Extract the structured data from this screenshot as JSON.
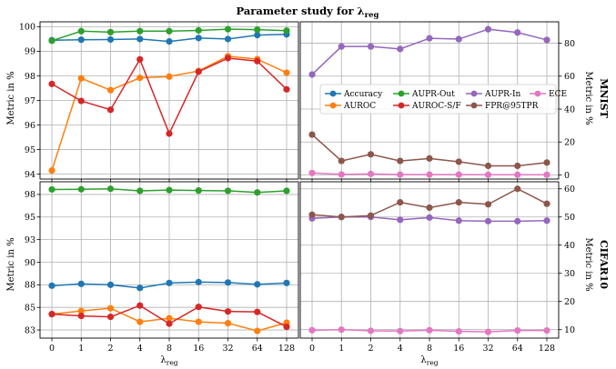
{
  "figure_title": "Parameter study for λreg",
  "title_main": "Parameter study for λ",
  "title_sub": "reg",
  "x_label_main": "λ",
  "x_label_sub": "reg",
  "y_label": "Metric in %",
  "row_labels": [
    "MNIST",
    "CIFAR10"
  ],
  "colors": {
    "Accuracy": "#1f77b4",
    "AUPR-Out": "#2ca02c",
    "AUROC": "#ff7f0e",
    "AUROC-S/F": "#d62728",
    "AUPR-In": "#9467bd",
    "FPR@95TPR": "#8c564b",
    "ECE": "#e377c2"
  },
  "legend": {
    "placement": "center-right",
    "entries": [
      "Accuracy",
      "AUPR-Out",
      "AUPR-In",
      "ECE",
      "AUROC",
      "AUROC-S/F",
      "FPR@95TPR"
    ]
  },
  "chart_data": [
    {
      "type": "line",
      "row": "MNIST",
      "panel": "left",
      "categories": [
        "0",
        "1",
        "2",
        "4",
        "8",
        "16",
        "32",
        "64",
        "128"
      ],
      "ylim": [
        93.8,
        100.2
      ],
      "yticks": [
        94,
        95,
        96,
        97,
        98,
        99,
        100
      ],
      "ylabel": "Metric in %",
      "grid": true,
      "series": [
        {
          "name": "Accuracy",
          "values": [
            99.45,
            99.47,
            99.48,
            99.5,
            99.4,
            99.54,
            99.5,
            99.66,
            99.69
          ]
        },
        {
          "name": "AUPR-Out",
          "values": [
            99.43,
            99.82,
            99.78,
            99.82,
            99.82,
            99.85,
            99.9,
            99.88,
            99.84
          ]
        },
        {
          "name": "AUROC",
          "values": [
            94.15,
            97.9,
            97.42,
            97.92,
            97.97,
            98.2,
            98.8,
            98.68,
            98.13
          ]
        },
        {
          "name": "AUROC-S/F",
          "values": [
            97.67,
            96.98,
            96.62,
            98.67,
            95.65,
            98.17,
            98.72,
            98.6,
            97.45
          ]
        }
      ]
    },
    {
      "type": "line",
      "row": "MNIST",
      "panel": "right",
      "categories": [
        "0",
        "1",
        "2",
        "4",
        "8",
        "16",
        "32",
        "64",
        "128"
      ],
      "ylim": [
        -2.5,
        93
      ],
      "yticks": [
        0,
        20,
        40,
        60,
        80
      ],
      "ylabel": "Metric in %",
      "grid": true,
      "series": [
        {
          "name": "AUPR-In",
          "values": [
            61,
            78,
            78,
            76.5,
            83,
            82.5,
            88.5,
            86.5,
            82
          ]
        },
        {
          "name": "FPR@95TPR",
          "values": [
            24.5,
            8.5,
            12.5,
            8.5,
            10,
            8,
            5.5,
            5.5,
            7.5
          ]
        },
        {
          "name": "ECE",
          "values": [
            1.2,
            0.3,
            0.6,
            0.2,
            0.2,
            0.2,
            0.1,
            0.1,
            0.1
          ]
        }
      ]
    },
    {
      "type": "line",
      "row": "CIFAR10",
      "panel": "left",
      "categories": [
        "0",
        "1",
        "2",
        "4",
        "8",
        "16",
        "32",
        "64",
        "128"
      ],
      "ylim": [
        81.6,
        98.9
      ],
      "yticks": [
        82.5,
        85.0,
        87.5,
        90.0,
        92.5,
        95.0,
        97.5
      ],
      "ylabel": "Metric in %",
      "grid": true,
      "series": [
        {
          "name": "Accuracy",
          "values": [
            87.4,
            87.6,
            87.5,
            87.15,
            87.7,
            87.8,
            87.75,
            87.55,
            87.7
          ]
        },
        {
          "name": "AUPR-Out",
          "values": [
            98.05,
            98.07,
            98.12,
            97.9,
            97.98,
            97.93,
            97.9,
            97.72,
            97.9
          ]
        },
        {
          "name": "AUROC",
          "values": [
            84.25,
            84.6,
            84.9,
            83.4,
            83.8,
            83.4,
            83.25,
            82.4,
            83.3
          ]
        },
        {
          "name": "AUROC-S/F",
          "values": [
            84.25,
            84.05,
            83.95,
            85.2,
            83.2,
            85.05,
            84.55,
            84.5,
            82.85
          ]
        }
      ]
    },
    {
      "type": "line",
      "row": "CIFAR10",
      "panel": "right",
      "categories": [
        "0",
        "1",
        "2",
        "4",
        "8",
        "16",
        "32",
        "64",
        "128"
      ],
      "ylim": [
        7,
        62.5
      ],
      "yticks": [
        10,
        20,
        30,
        40,
        50,
        60
      ],
      "ylabel": "Metric in %",
      "grid": true,
      "series": [
        {
          "name": "AUPR-In",
          "values": [
            49.5,
            50,
            50,
            49,
            49.8,
            48.7,
            48.5,
            48.5,
            48.7
          ]
        },
        {
          "name": "FPR@95TPR",
          "values": [
            50.8,
            50,
            50.5,
            55.2,
            53.3,
            55.2,
            54.5,
            60,
            54.7
          ]
        },
        {
          "name": "ECE",
          "values": [
            9.8,
            10,
            9.6,
            9.5,
            9.8,
            9.4,
            9.2,
            9.7,
            9.7
          ]
        }
      ]
    }
  ]
}
